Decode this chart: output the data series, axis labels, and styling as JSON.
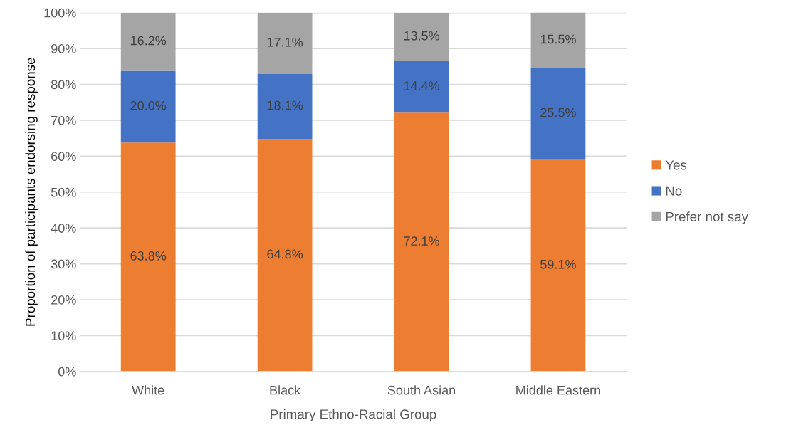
{
  "chart_data": {
    "type": "bar",
    "stacked": true,
    "xlabel": "Primary Ethno-Racial Group",
    "ylabel": "Proportion of participants endorsing response",
    "categories": [
      "White",
      "Black",
      "South Asian",
      "Middle Eastern"
    ],
    "series": [
      {
        "name": "Yes",
        "color": "#ed7d31",
        "values": [
          63.8,
          64.8,
          72.1,
          59.1
        ],
        "value_labels": [
          "63.8%",
          "64.8%",
          "72.1%",
          "59.1%"
        ]
      },
      {
        "name": "No",
        "color": "#4472c4",
        "values": [
          20.0,
          18.1,
          14.4,
          25.5
        ],
        "value_labels": [
          "20.0%",
          "18.1%",
          "14.4%",
          "25.5%"
        ]
      },
      {
        "name": "Prefer not say",
        "color": "#a5a5a5",
        "values": [
          16.2,
          17.1,
          13.5,
          15.5
        ],
        "value_labels": [
          "16.2%",
          "17.1%",
          "13.5%",
          "15.5%"
        ]
      }
    ],
    "ylim": [
      0,
      100
    ],
    "yticks": [
      {
        "value": 0,
        "label": "0%"
      },
      {
        "value": 10,
        "label": "10%"
      },
      {
        "value": 20,
        "label": "20%"
      },
      {
        "value": 30,
        "label": "30%"
      },
      {
        "value": 40,
        "label": "40%"
      },
      {
        "value": 50,
        "label": "50%"
      },
      {
        "value": 60,
        "label": "60%"
      },
      {
        "value": 70,
        "label": "70%"
      },
      {
        "value": 80,
        "label": "80%"
      },
      {
        "value": 90,
        "label": "90%"
      },
      {
        "value": 100,
        "label": "100%"
      }
    ],
    "grid": "y",
    "legend": "right"
  }
}
